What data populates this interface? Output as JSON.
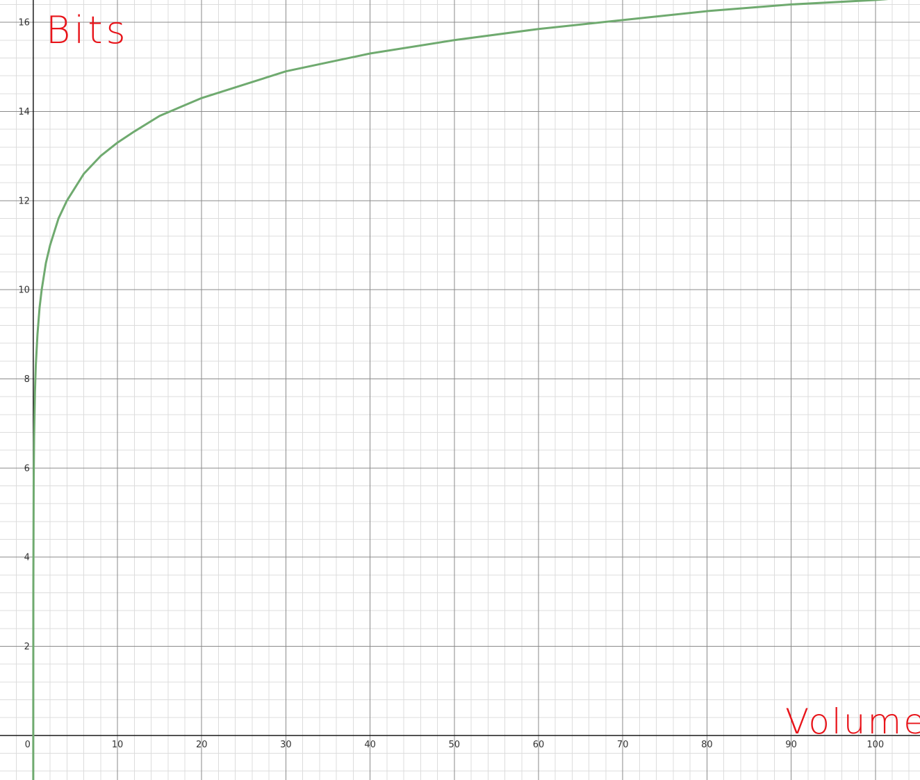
{
  "chart_data": {
    "type": "line",
    "xlabel": "Volume",
    "ylabel": "Bits",
    "xlim": [
      -3.95,
      105.3
    ],
    "ylim": [
      -1.0,
      16.5
    ],
    "grid": true,
    "x_ticks": [
      0,
      10,
      20,
      30,
      40,
      50,
      60,
      70,
      80,
      90,
      100
    ],
    "y_ticks": [
      2,
      4,
      6,
      8,
      10,
      12,
      14,
      16
    ],
    "series": [
      {
        "color": "#6faa6f",
        "points": [
          [
            0.0001,
            -1.0
          ],
          [
            0.001,
            0.0
          ],
          [
            0.01,
            3.3
          ],
          [
            0.05,
            5.7
          ],
          [
            0.1,
            6.7
          ],
          [
            0.2,
            7.7
          ],
          [
            0.3,
            8.3
          ],
          [
            0.5,
            9.0
          ],
          [
            0.75,
            9.6
          ],
          [
            1,
            10.0
          ],
          [
            1.5,
            10.6
          ],
          [
            2,
            11.0
          ],
          [
            3,
            11.6
          ],
          [
            4,
            12.0
          ],
          [
            5,
            12.3
          ],
          [
            6,
            12.6
          ],
          [
            8,
            13.0
          ],
          [
            10,
            13.3
          ],
          [
            12,
            13.55
          ],
          [
            15,
            13.9
          ],
          [
            20,
            14.3
          ],
          [
            25,
            14.6
          ],
          [
            30,
            14.9
          ],
          [
            35,
            15.1
          ],
          [
            40,
            15.3
          ],
          [
            50,
            15.6
          ],
          [
            60,
            15.85
          ],
          [
            70,
            16.05
          ],
          [
            80,
            16.25
          ],
          [
            90,
            16.4
          ],
          [
            100,
            16.5
          ],
          [
            105.3,
            16.58
          ]
        ]
      }
    ]
  }
}
